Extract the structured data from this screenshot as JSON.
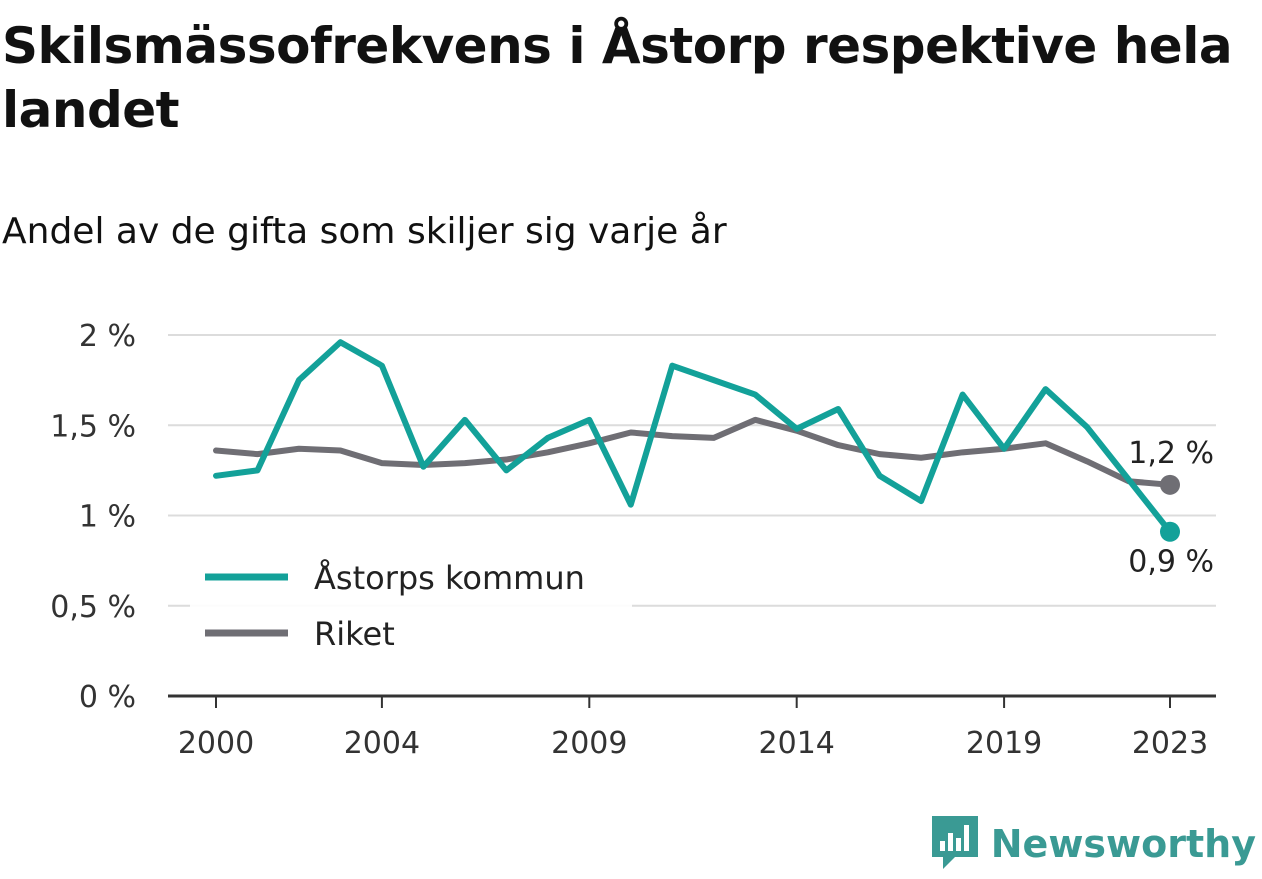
{
  "title": "Skilsmässofrekvens i Åstorp respektive hela landet",
  "subtitle": "Andel av de gifta som skiljer sig varje år",
  "brand": {
    "name": "Newsworthy",
    "icon": "newsworthy-logo-icon",
    "color": "#3a9a94"
  },
  "chart_data": {
    "type": "line",
    "x": [
      2000,
      2001,
      2002,
      2003,
      2004,
      2005,
      2006,
      2007,
      2008,
      2009,
      2010,
      2011,
      2012,
      2013,
      2014,
      2015,
      2016,
      2017,
      2018,
      2019,
      2020,
      2021,
      2022,
      2023
    ],
    "series": [
      {
        "name": "Åstorps kommun",
        "color": "#13a199",
        "values": [
          1.22,
          1.25,
          1.75,
          1.96,
          1.83,
          1.27,
          1.53,
          1.25,
          1.43,
          1.53,
          1.06,
          1.83,
          1.75,
          1.67,
          1.48,
          1.59,
          1.22,
          1.08,
          1.67,
          1.37,
          1.7,
          1.49,
          1.2,
          0.91
        ],
        "end_label": "0,9 %"
      },
      {
        "name": "Riket",
        "color": "#6f6e74",
        "values": [
          1.36,
          1.34,
          1.37,
          1.36,
          1.29,
          1.28,
          1.29,
          1.31,
          1.35,
          1.4,
          1.46,
          1.44,
          1.43,
          1.53,
          1.47,
          1.39,
          1.34,
          1.32,
          1.35,
          1.37,
          1.4,
          1.3,
          1.19,
          1.17
        ],
        "end_label": "1,2 %"
      }
    ],
    "xticks": [
      2000,
      2004,
      2009,
      2014,
      2019,
      2023
    ],
    "xtick_labels": [
      "2000",
      "2004",
      "2009",
      "2014",
      "2019",
      "2023"
    ],
    "yticks": [
      0,
      0.5,
      1,
      1.5,
      2
    ],
    "ytick_labels": [
      "0 %",
      "0,5 %",
      "1 %",
      "1,5 %",
      "2 %"
    ],
    "ylim": [
      0,
      2
    ],
    "xlim": [
      2000,
      2023
    ],
    "grid": true,
    "legend_position": "bottom-left"
  }
}
